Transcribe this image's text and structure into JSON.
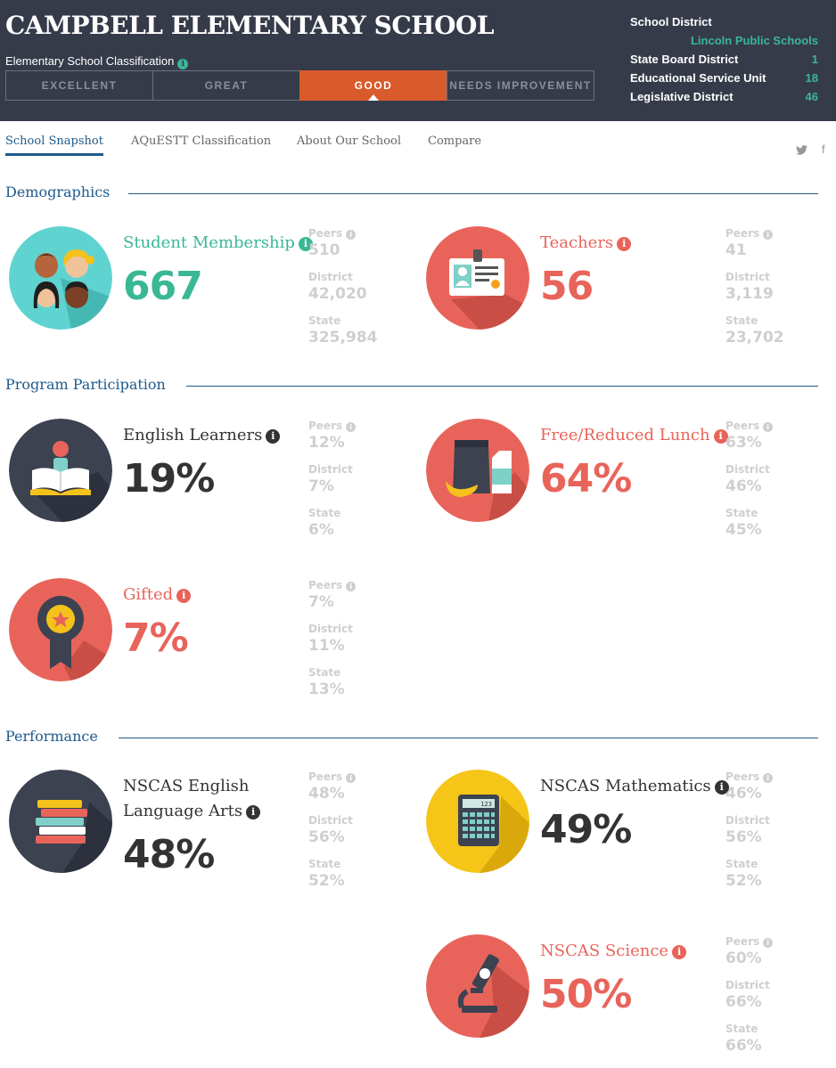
{
  "header": {
    "school_name": "CAMPBELL ELEMENTARY SCHOOL",
    "classification_label": "Elementary School Classification",
    "classification_info_icon": "info-icon",
    "classification_tabs": [
      "EXCELLENT",
      "GREAT",
      "GOOD",
      "NEEDS IMPROVEMENT"
    ],
    "active_classification": "GOOD",
    "district_info": {
      "school_district_label": "School District",
      "school_district_value": "Lincoln Public Schools",
      "rows": [
        {
          "label": "State Board District",
          "value": "1"
        },
        {
          "label": "Educational Service Unit",
          "value": "18"
        },
        {
          "label": "Legislative District",
          "value": "46"
        }
      ]
    },
    "colors": {
      "header_bg": "#363b4a",
      "active_tab": "#d95b2b",
      "accent": "#3ab795"
    }
  },
  "nav": {
    "tabs": [
      "School Snapshot",
      "AQuESTT Classification",
      "About Our School",
      "Compare"
    ],
    "active_tab": "School Snapshot",
    "social_icons": [
      "twitter-icon",
      "facebook-icon"
    ],
    "twitter_glyph": "🐦",
    "facebook_glyph": "f"
  },
  "sections": {
    "demographics": "Demographics",
    "program": "Program Participation",
    "performance": "Performance"
  },
  "comparison_labels": {
    "peers": "Peers",
    "district": "District",
    "state": "State"
  },
  "stats": {
    "student_membership": {
      "label": "Student Membership",
      "value": "667",
      "peers": "510",
      "district": "42,020",
      "state": "325,984",
      "icon": "students-icon"
    },
    "teachers": {
      "label": "Teachers",
      "value": "56",
      "peers": "41",
      "district": "3,119",
      "state": "23,702",
      "icon": "id-badge-icon"
    },
    "english_learners": {
      "label": "English Learners",
      "value": "19%",
      "peers": "12%",
      "district": "7%",
      "state": "6%",
      "icon": "reader-book-icon"
    },
    "free_reduced_lunch": {
      "label": "Free/Reduced Lunch",
      "value": "64%",
      "peers": "63%",
      "district": "46%",
      "state": "45%",
      "icon": "lunch-icon"
    },
    "gifted": {
      "label": "Gifted",
      "value": "7%",
      "peers": "7%",
      "district": "11%",
      "state": "13%",
      "icon": "award-ribbon-icon"
    },
    "nscas_ela": {
      "label_line1": "NSCAS English",
      "label_line2": "Language Arts",
      "value": "48%",
      "peers": "48%",
      "district": "56%",
      "state": "52%",
      "icon": "book-stack-icon"
    },
    "nscas_math": {
      "label": "NSCAS Mathematics",
      "value": "49%",
      "peers": "46%",
      "district": "56%",
      "state": "52%",
      "icon": "calculator-icon",
      "calc_display": "123"
    },
    "nscas_science": {
      "label": "NSCAS Science",
      "value": "50%",
      "peers": "60%",
      "district": "66%",
      "state": "66%",
      "icon": "microscope-icon"
    }
  },
  "info_glyph": "i"
}
